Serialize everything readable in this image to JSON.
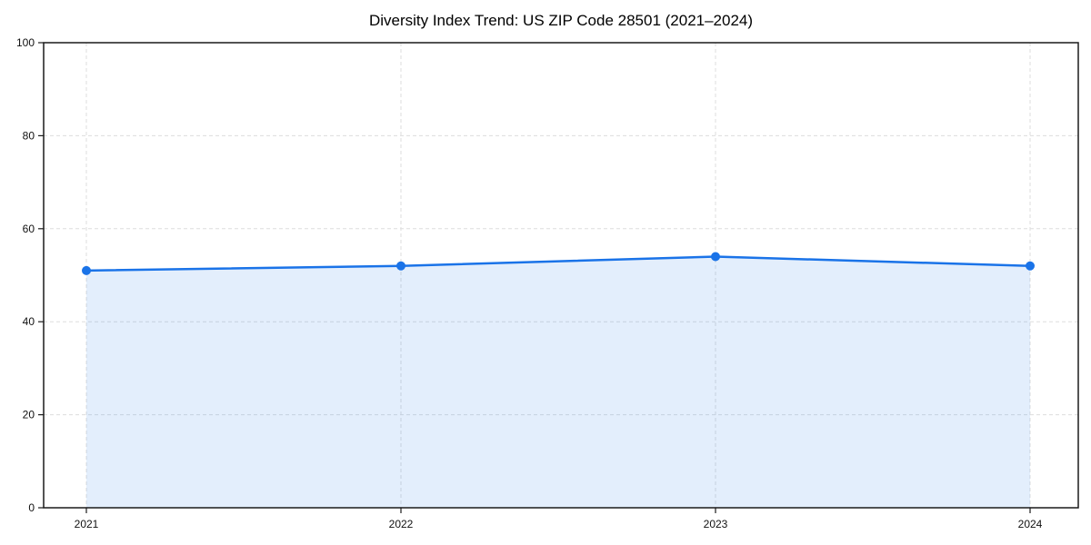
{
  "chart_data": {
    "type": "line",
    "title": "Diversity Index Trend: US ZIP Code 28501 (2021–2024)",
    "categories": [
      "2021",
      "2022",
      "2023",
      "2024"
    ],
    "x": [
      2021,
      2022,
      2023,
      2024
    ],
    "series": [
      {
        "name": "Diversity Index",
        "values": [
          51,
          52,
          54,
          52
        ]
      }
    ],
    "xlabel": "",
    "ylabel": "",
    "ylim": [
      0,
      100
    ],
    "yticks": [
      0,
      20,
      40,
      60,
      80,
      100
    ],
    "grid": "dashed",
    "legend": "none",
    "style": {
      "line_color": "#1a73e8",
      "fill_color": "rgba(26, 115, 232, 0.12)",
      "marker": "circle",
      "marker_radius": 5,
      "line_width": 2.5,
      "grid_color": "#dddddd",
      "frame_color": "#1a1a1a",
      "tick_label_color": "#111111",
      "background": "#ffffff"
    }
  }
}
